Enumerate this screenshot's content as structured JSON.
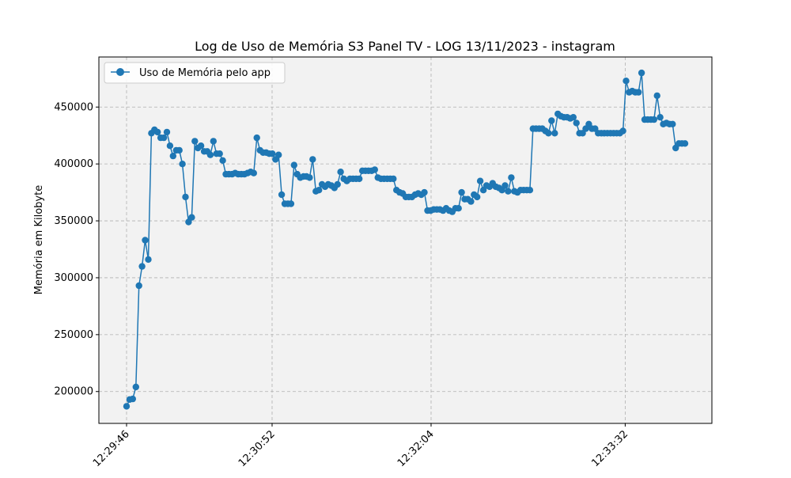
{
  "chart_data": {
    "type": "line",
    "title": "Log de Uso de Memória S3 Panel TV - LOG 13/11/2023 - instagram",
    "xlabel": "",
    "ylabel": "Memória em Kilobyte",
    "x_tick_labels": [
      "12:29:46",
      "12:30:52",
      "12:32:04",
      "12:33:32"
    ],
    "y_ticks": [
      200000,
      250000,
      300000,
      350000,
      400000,
      450000
    ],
    "ylim": [
      172000,
      494000
    ],
    "grid": true,
    "legend_position": "upper-left",
    "background_color": "#f2f2f2",
    "series": [
      {
        "name": "Uso de Memória pelo app",
        "color": "#1f77b4",
        "values": [
          187000,
          193000,
          193500,
          204000,
          293000,
          310000,
          333000,
          316000,
          427000,
          430000,
          428000,
          423000,
          423000,
          428000,
          416000,
          407000,
          412000,
          412000,
          400000,
          371000,
          349000,
          353000,
          420000,
          414000,
          416000,
          411000,
          411000,
          408000,
          420000,
          409000,
          409000,
          403000,
          391000,
          391000,
          391000,
          392000,
          391000,
          391000,
          391000,
          392000,
          393000,
          392000,
          423000,
          412000,
          410000,
          410000,
          409000,
          409000,
          404000,
          408000,
          373000,
          365000,
          365000,
          365000,
          399000,
          391000,
          388000,
          389000,
          389000,
          388000,
          404000,
          376000,
          377000,
          382000,
          380000,
          382000,
          381000,
          379000,
          382000,
          393000,
          387000,
          385000,
          387000,
          387000,
          387000,
          387000,
          394000,
          394000,
          394000,
          394000,
          395000,
          388000,
          387000,
          387000,
          387000,
          387000,
          387000,
          377000,
          375000,
          374000,
          371000,
          371000,
          371000,
          373000,
          374000,
          373000,
          375000,
          359000,
          359000,
          360000,
          360000,
          360000,
          359000,
          361000,
          359000,
          358000,
          361000,
          361000,
          375000,
          369000,
          369000,
          367000,
          373000,
          371000,
          385000,
          377000,
          381000,
          380000,
          383000,
          380000,
          379000,
          377000,
          381000,
          376000,
          388000,
          376000,
          375000,
          377000,
          377000,
          377000,
          377000,
          431000,
          431000,
          431000,
          431000,
          429000,
          427000,
          438000,
          427000,
          444000,
          442000,
          441000,
          441000,
          440000,
          441000,
          436000,
          427000,
          427000,
          431000,
          435000,
          431000,
          431000,
          427000,
          427000,
          427000,
          427000,
          427000,
          427000,
          427000,
          427000,
          429000,
          473000,
          463000,
          464000,
          463000,
          463000,
          480000,
          439000,
          439000,
          439000,
          439000,
          460000,
          441000,
          435000,
          436000,
          435000,
          435000,
          414000,
          418000,
          418000,
          418000
        ]
      }
    ]
  }
}
